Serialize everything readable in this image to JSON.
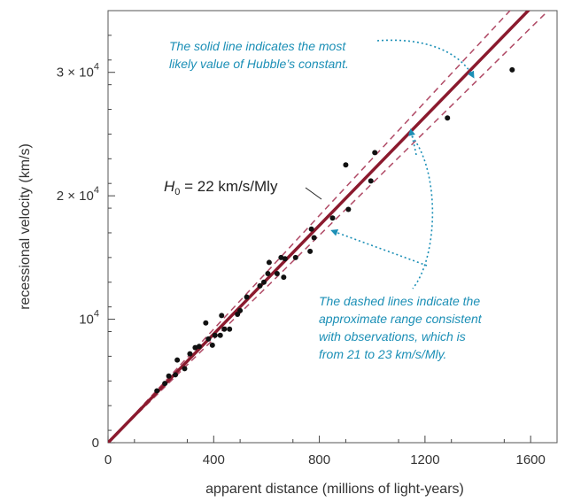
{
  "chart_data": {
    "type": "scatter",
    "xlabel": "apparent distance (millions of light-years)",
    "ylabel": "recessional velocity (km/s)",
    "xlim": [
      0,
      1700
    ],
    "ylim": [
      0,
      35000
    ],
    "x_ticks": [
      {
        "value": 0,
        "label": "0"
      },
      {
        "value": 400,
        "label": "400"
      },
      {
        "value": 800,
        "label": "800"
      },
      {
        "value": 1200,
        "label": "1200"
      },
      {
        "value": 1600,
        "label": "1600"
      }
    ],
    "y_ticks": [
      {
        "value": 0,
        "mantissa": "0",
        "exponent": ""
      },
      {
        "value": 10000,
        "mantissa": "10",
        "exponent": "4"
      },
      {
        "value": 20000,
        "mantissa": "2 × 10",
        "exponent": "4"
      },
      {
        "value": 30000,
        "mantissa": "3 × 10",
        "exponent": "4"
      }
    ],
    "fit": {
      "label_symbol": "H",
      "label_subscript": "0",
      "label_rest": " = 22 km/s/Mly",
      "slope": 22
    },
    "range": {
      "low_slope": 21,
      "high_slope": 23
    },
    "annotation_solid": [
      "The solid line indicates the most",
      "likely value of Hubble’s constant."
    ],
    "annotation_dashed": [
      "The dashed lines indicate the",
      "approximate range consistent",
      "with observations, which is",
      "from 21 to 23 km/s/Mly."
    ],
    "points": [
      [
        185,
        4200
      ],
      [
        215,
        4800
      ],
      [
        230,
        5400
      ],
      [
        255,
        5500
      ],
      [
        262,
        6700
      ],
      [
        290,
        6000
      ],
      [
        310,
        7200
      ],
      [
        330,
        7700
      ],
      [
        345,
        7800
      ],
      [
        370,
        9700
      ],
      [
        380,
        8400
      ],
      [
        395,
        7900
      ],
      [
        405,
        8700
      ],
      [
        425,
        8700
      ],
      [
        430,
        10300
      ],
      [
        440,
        9200
      ],
      [
        460,
        9200
      ],
      [
        490,
        10400
      ],
      [
        500,
        10700
      ],
      [
        525,
        11800
      ],
      [
        575,
        12700
      ],
      [
        590,
        13000
      ],
      [
        605,
        13700
      ],
      [
        610,
        14600
      ],
      [
        640,
        13700
      ],
      [
        655,
        15000
      ],
      [
        665,
        13400
      ],
      [
        670,
        14900
      ],
      [
        710,
        15000
      ],
      [
        765,
        15500
      ],
      [
        770,
        17300
      ],
      [
        780,
        16600
      ],
      [
        850,
        18200
      ],
      [
        900,
        22500
      ],
      [
        910,
        18900
      ],
      [
        995,
        21200
      ],
      [
        1010,
        23500
      ],
      [
        1285,
        26300
      ],
      [
        1530,
        30200
      ]
    ],
    "colors": {
      "fit_line": "#8b1a2e",
      "dashed_lines": "#b04a66",
      "annotation": "#1b8fb6",
      "points": "#111111",
      "axis": "#444444"
    }
  }
}
